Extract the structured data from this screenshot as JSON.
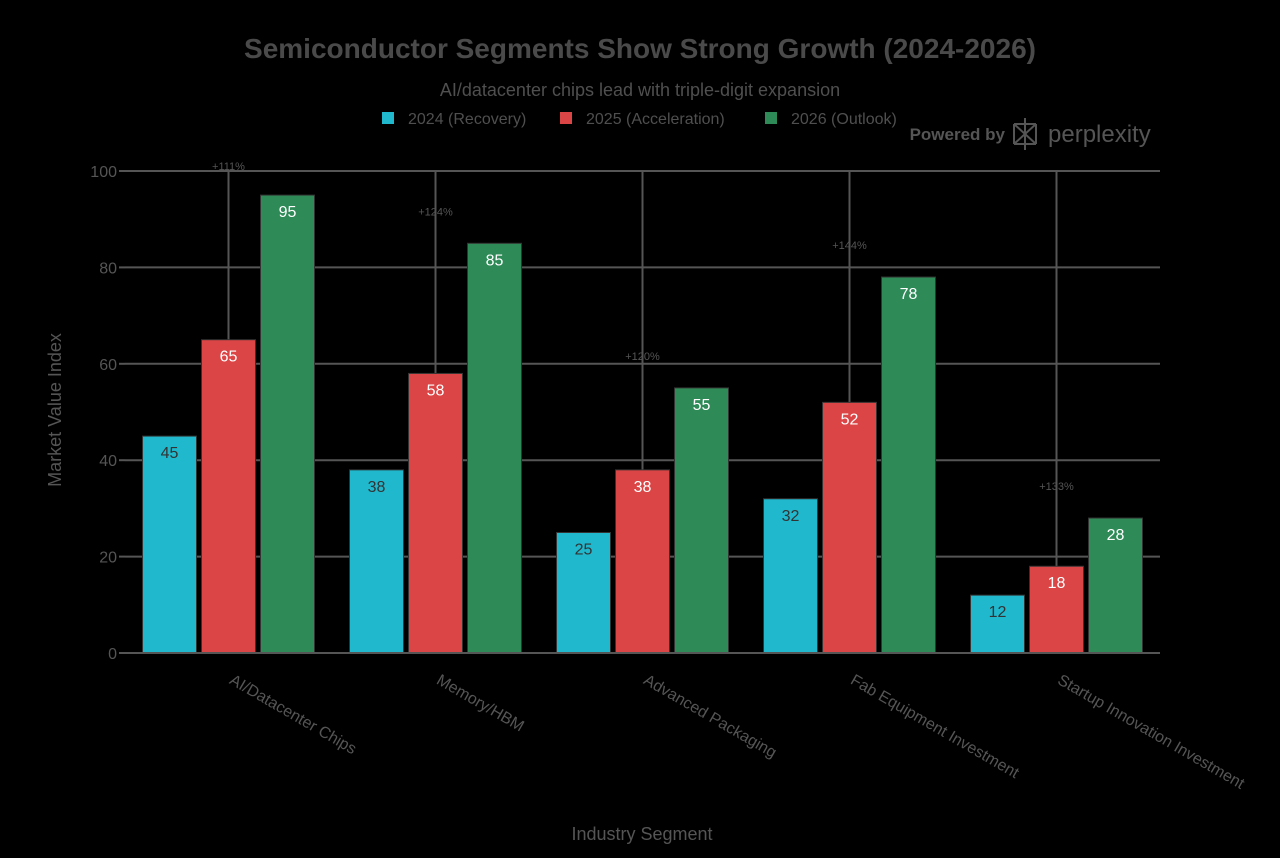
{
  "chart_data": {
    "type": "bar",
    "title": "Semiconductor Segments Show Strong Growth (2024-2026)",
    "subtitle": "AI/datacenter chips lead with triple-digit expansion",
    "xlabel": "Industry Segment",
    "ylabel": "Market Value Index",
    "ylim": [
      0,
      100
    ],
    "yticks": [
      0,
      20,
      40,
      60,
      80,
      100
    ],
    "grid": true,
    "legend_position": "top",
    "categories": [
      "AI/Datacenter Chips",
      "Memory/HBM",
      "Advanced Packaging",
      "Fab Equipment Investment",
      "Startup Innovation Investment"
    ],
    "series": [
      {
        "name": "2024 (Recovery)",
        "color": "#1fb8cd",
        "values": [
          45,
          38,
          25,
          32,
          12
        ]
      },
      {
        "name": "2025 (Acceleration)",
        "color": "#db4545",
        "values": [
          65,
          58,
          38,
          52,
          18
        ]
      },
      {
        "name": "2026 (Outlook)",
        "color": "#2e8b57",
        "values": [
          95,
          85,
          55,
          78,
          28
        ]
      }
    ],
    "annotations": [
      "+111%",
      "+124%",
      "+120%",
      "+144%",
      "+133%"
    ]
  },
  "branding": {
    "powered_by": "Powered by",
    "name": "perplexity"
  }
}
